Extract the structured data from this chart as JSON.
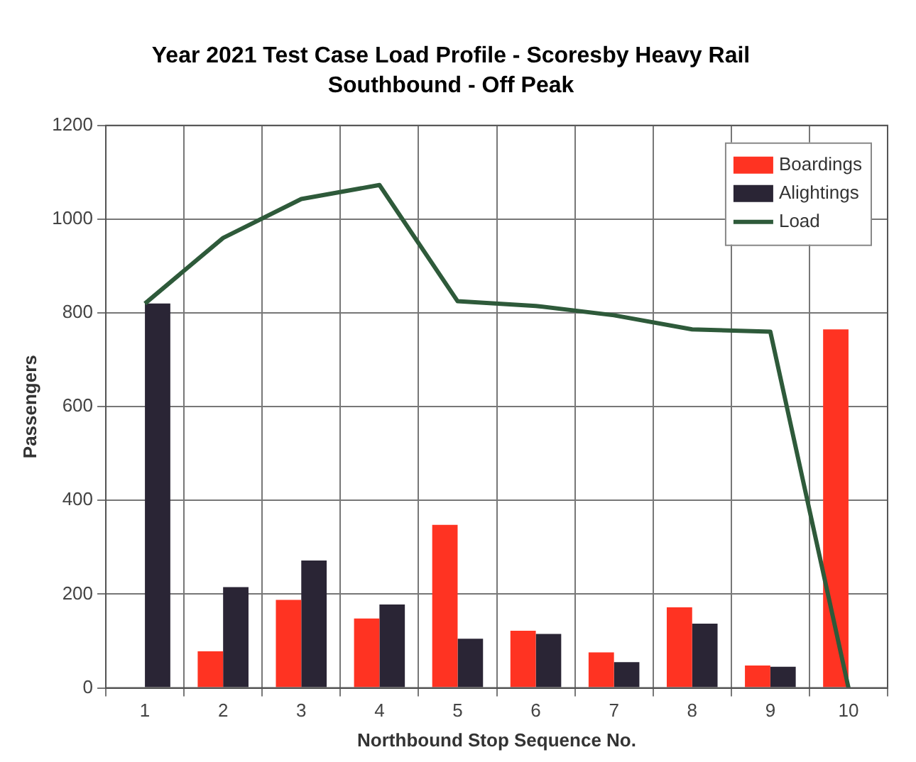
{
  "chart_data": {
    "type": "bar",
    "title": "Year 2021 Test Case Load Profile - Scoresby Heavy Rail",
    "subtitle": "Southbound - Off Peak",
    "xlabel": "Northbound Stop Sequence No.",
    "ylabel": "Passengers",
    "categories": [
      "1",
      "2",
      "3",
      "4",
      "5",
      "6",
      "7",
      "8",
      "9",
      "10"
    ],
    "series": [
      {
        "name": "Boardings",
        "color": "#ff3322",
        "values": [
          0,
          78,
          188,
          148,
          348,
          122,
          76,
          172,
          48,
          765
        ]
      },
      {
        "name": "Alightings",
        "color": "#2a2535",
        "values": [
          820,
          215,
          272,
          178,
          105,
          115,
          55,
          137,
          45,
          0
        ]
      },
      {
        "name": "Load",
        "type": "line",
        "color": "#2e5a3a",
        "values": [
          820,
          960,
          1043,
          1073,
          825,
          815,
          795,
          765,
          760,
          0
        ]
      }
    ],
    "ylim": [
      0,
      1200
    ],
    "yticks": [
      0,
      200,
      400,
      600,
      800,
      1000,
      1200
    ],
    "grid": true,
    "legend": "top right",
    "marker": "none"
  }
}
